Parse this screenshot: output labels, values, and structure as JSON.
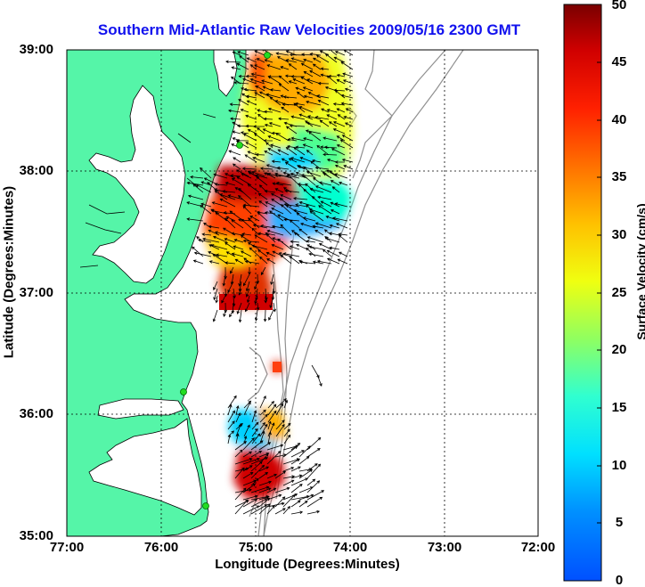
{
  "title": "Southern Mid-Atlantic Raw Velocities 2009/05/16 2300 GMT",
  "x_axis": {
    "label": "Longitude (Degrees:Minutes)",
    "ticks": [
      "77:00",
      "76:00",
      "75:00",
      "74:00",
      "73:00",
      "72:00"
    ]
  },
  "y_axis": {
    "label": "Latitude (Degrees:Minutes)",
    "ticks": [
      "39:00",
      "38:00",
      "37:00",
      "36:00",
      "35:00"
    ]
  },
  "colorbar": {
    "label": "Surface Velocity (cm/s)",
    "ticks": [
      "50",
      "45",
      "40",
      "35",
      "30",
      "25",
      "20",
      "15",
      "10",
      "5",
      "0"
    ],
    "min": 0,
    "max": 50
  },
  "map_extent": {
    "lon_min": -77,
    "lon_max": -72,
    "lat_min": 35,
    "lat_max": 39
  },
  "colors": {
    "land": "#55f5a8",
    "title": "#1212ee",
    "contour": "#909090",
    "station": "#22dd22"
  },
  "icons": [
    "hf-radar-station-icon",
    "velocity-vector-icon"
  ]
}
